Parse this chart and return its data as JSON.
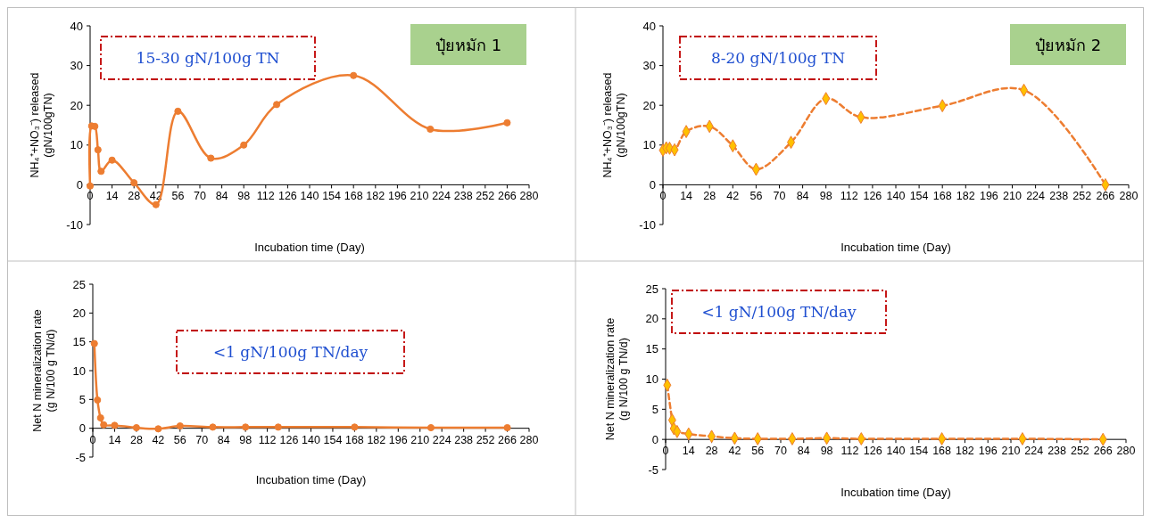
{
  "chart_data": [
    {
      "type": "line",
      "title": "ปุ๋ยหมัก 1",
      "xlabel": "Incubation time (Day)",
      "ylabel": "NH₄⁺+NO₃⁻) released\n(gN/100gTN)",
      "annotations": [
        "15-30 gN/100g TN"
      ],
      "x": [
        0,
        1,
        3,
        5,
        7,
        14,
        28,
        42,
        56,
        77,
        98,
        119,
        168,
        217,
        266
      ],
      "series": [
        {
          "color": "#ed7d31",
          "values": [
            -0.3,
            14.8,
            14.7,
            8.8,
            3.4,
            6.2,
            0.5,
            -5,
            18.5,
            6.7,
            10,
            20.2,
            27.5,
            14,
            15.6
          ]
        }
      ],
      "xlim": [
        0,
        280
      ],
      "xticks": [
        0,
        14,
        28,
        42,
        56,
        70,
        84,
        98,
        112,
        126,
        140,
        154,
        168,
        182,
        196,
        210,
        224,
        238,
        252,
        266,
        280
      ],
      "ylim": [
        -10,
        40
      ],
      "yticks": [
        -10,
        0,
        10,
        20,
        30,
        40
      ],
      "marker": "circle",
      "line_style": "solid"
    },
    {
      "type": "line",
      "title": "ปุ๋ยหมัก 2",
      "xlabel": "Incubation time (Day)",
      "ylabel": "NH₄⁺+NO₃⁻) released\n(gN/100gTN)",
      "annotations": [
        "8-20 gN/100g TN"
      ],
      "x": [
        0,
        2,
        4,
        7,
        14,
        28,
        42,
        56,
        77,
        98,
        119,
        168,
        217,
        266
      ],
      "series": [
        {
          "color": "#ed7d31",
          "colors": [
            "#ffc000",
            "#ffc000",
            "#ffc000",
            "#ffc000",
            "#ffc000",
            "#ffc000",
            "#ffc000",
            "#ffc000",
            "#ffc000",
            "#ffc000",
            "#ffc000",
            "#ffc000",
            "#ffc000",
            "#ffc000"
          ],
          "values": [
            8.7,
            9.3,
            9.2,
            8.8,
            13.4,
            14.7,
            9.8,
            3.9,
            10.7,
            21.7,
            17,
            19.9,
            23.8,
            0
          ]
        }
      ],
      "xlim": [
        0,
        280
      ],
      "xticks": [
        0,
        14,
        28,
        42,
        56,
        70,
        84,
        98,
        112,
        126,
        140,
        154,
        168,
        182,
        196,
        210,
        224,
        238,
        252,
        266,
        280
      ],
      "ylim": [
        -10,
        40
      ],
      "yticks": [
        -10,
        0,
        10,
        20,
        30,
        40
      ],
      "marker": "diamond",
      "line_style": "dashed"
    },
    {
      "type": "line",
      "xlabel": "Incubation time (Day)",
      "ylabel": "Net N mineralization rate\n(g N/100 g TN/d)",
      "annotations": [
        "<1 gN/100g TN/day"
      ],
      "x": [
        1,
        3,
        5,
        7,
        14,
        28,
        42,
        56,
        77,
        98,
        119,
        168,
        217,
        266
      ],
      "series": [
        {
          "color": "#ed7d31",
          "values": [
            14.7,
            4.9,
            1.8,
            0.6,
            0.5,
            0.1,
            -0.1,
            0.4,
            0.2,
            0.2,
            0.2,
            0.2,
            0.1,
            0.1
          ]
        }
      ],
      "xlim": [
        0,
        280
      ],
      "xticks": [
        0,
        14,
        28,
        42,
        56,
        70,
        84,
        98,
        112,
        126,
        140,
        154,
        168,
        182,
        196,
        210,
        224,
        238,
        252,
        266,
        280
      ],
      "ylim": [
        -5,
        25
      ],
      "yticks": [
        -5,
        0,
        5,
        10,
        15,
        20,
        25
      ],
      "marker": "circle",
      "line_style": "solid"
    },
    {
      "type": "line",
      "xlabel": "Incubation time (Day)",
      "ylabel": "Net N mineralization rate\n(g N/100 g TN/d)",
      "annotations": [
        "<1 gN/100g TN/day"
      ],
      "x": [
        1,
        4,
        5,
        7,
        14,
        28,
        42,
        56,
        77,
        98,
        119,
        168,
        217,
        266
      ],
      "series": [
        {
          "color": "#ed7d31",
          "colors": [
            "#ffc000",
            "#ffc000",
            "#ffc000",
            "#ffc000",
            "#ffc000",
            "#ffc000",
            "#ffc000",
            "#ffc000",
            "#ffc000",
            "#ffc000",
            "#ffc000",
            "#ffc000",
            "#ffc000",
            "#ffc000"
          ],
          "values": [
            9,
            3.2,
            1.8,
            1.3,
            0.9,
            0.5,
            0.2,
            0.1,
            0.1,
            0.2,
            0.1,
            0.1,
            0.1,
            0
          ]
        }
      ],
      "xlim": [
        0,
        280
      ],
      "xticks": [
        0,
        14,
        28,
        42,
        56,
        70,
        84,
        98,
        112,
        126,
        140,
        154,
        168,
        182,
        196,
        210,
        224,
        238,
        252,
        266,
        280
      ],
      "ylim": [
        -5,
        25
      ],
      "yticks": [
        -5,
        0,
        5,
        10,
        15,
        20,
        25
      ],
      "marker": "diamond",
      "line_style": "dashed"
    }
  ]
}
